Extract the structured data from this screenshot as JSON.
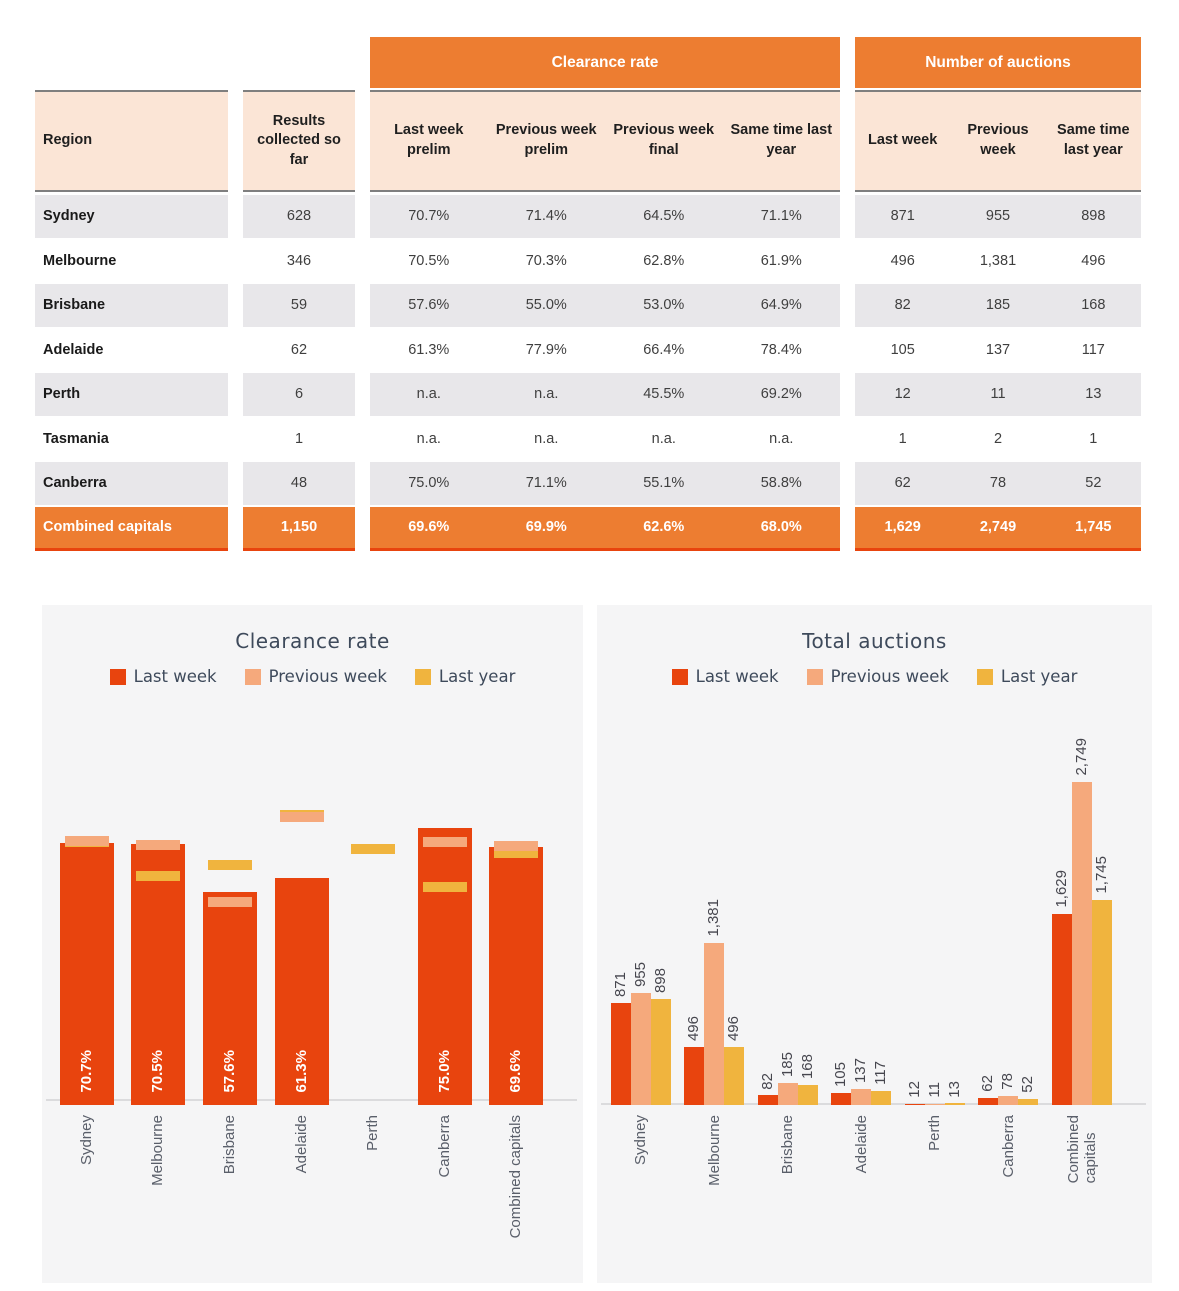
{
  "colors": {
    "accent_orange": "#ED7D31",
    "bar_red": "#E8440E",
    "salmon": "#F5A97C",
    "gold": "#F0B43E",
    "header_peach": "#FBE5D6",
    "row_gray": "#E8E7EA",
    "panel_gray": "#F5F5F6",
    "title_slate": "#3E4A5B"
  },
  "table": {
    "group_headers": [
      "Clearance rate",
      "Number of auctions"
    ],
    "columns": [
      "Region",
      "Results collected so far",
      "Last week prelim",
      "Previous week prelim",
      "Previous week final",
      "Same time last year",
      "Last week",
      "Previous week",
      "Same time last year"
    ],
    "rows": [
      {
        "region": "Sydney",
        "results": "628",
        "clearance": [
          "70.7%",
          "71.4%",
          "64.5%",
          "71.1%"
        ],
        "auctions": [
          "871",
          "955",
          "898"
        ]
      },
      {
        "region": "Melbourne",
        "results": "346",
        "clearance": [
          "70.5%",
          "70.3%",
          "62.8%",
          "61.9%"
        ],
        "auctions": [
          "496",
          "1,381",
          "496"
        ]
      },
      {
        "region": "Brisbane",
        "results": "59",
        "clearance": [
          "57.6%",
          "55.0%",
          "53.0%",
          "64.9%"
        ],
        "auctions": [
          "82",
          "185",
          "168"
        ]
      },
      {
        "region": "Adelaide",
        "results": "62",
        "clearance": [
          "61.3%",
          "77.9%",
          "66.4%",
          "78.4%"
        ],
        "auctions": [
          "105",
          "137",
          "117"
        ]
      },
      {
        "region": "Perth",
        "results": "6",
        "clearance": [
          "n.a.",
          "n.a.",
          "45.5%",
          "69.2%"
        ],
        "auctions": [
          "12",
          "11",
          "13"
        ]
      },
      {
        "region": "Tasmania",
        "results": "1",
        "clearance": [
          "n.a.",
          "n.a.",
          "n.a.",
          "n.a."
        ],
        "auctions": [
          "1",
          "2",
          "1"
        ]
      },
      {
        "region": "Canberra",
        "results": "48",
        "clearance": [
          "75.0%",
          "71.1%",
          "55.1%",
          "58.8%"
        ],
        "auctions": [
          "62",
          "78",
          "52"
        ]
      },
      {
        "region": "Combined capitals",
        "results": "1,150",
        "clearance": [
          "69.6%",
          "69.9%",
          "62.6%",
          "68.0%"
        ],
        "auctions": [
          "1,629",
          "2,749",
          "1,745"
        ],
        "highlight": true
      }
    ]
  },
  "chart_data": [
    {
      "type": "bar",
      "title": "Clearance rate",
      "categories": [
        "Sydney",
        "Melbourne",
        "Brisbane",
        "Adelaide",
        "Perth",
        "Canberra",
        "Combined capitals"
      ],
      "series": [
        {
          "name": "Last week",
          "style": "bar",
          "color": "#E8440E",
          "values": [
            70.7,
            70.5,
            57.6,
            61.3,
            null,
            75.0,
            69.6
          ],
          "labels": [
            "70.7%",
            "70.5%",
            "57.6%",
            "61.3%",
            null,
            "75.0%",
            "69.6%"
          ]
        },
        {
          "name": "Previous week",
          "style": "dash",
          "color": "#F5A97C",
          "values": [
            71.4,
            70.3,
            55.0,
            77.9,
            null,
            71.1,
            69.9
          ]
        },
        {
          "name": "Last year",
          "style": "dash",
          "color": "#F0B43E",
          "values": [
            71.1,
            61.9,
            64.9,
            78.4,
            69.2,
            58.8,
            68.0
          ]
        }
      ],
      "xlabel": "",
      "ylabel": "",
      "ylim": [
        0,
        85
      ],
      "grid": false,
      "legend_position": "top"
    },
    {
      "type": "bar",
      "title": "Total auctions",
      "categories": [
        "Sydney",
        "Melbourne",
        "Brisbane",
        "Adelaide",
        "Perth",
        "Canberra",
        "Combined\ncapitals"
      ],
      "series": [
        {
          "name": "Last week",
          "style": "bar",
          "color": "#E8440E",
          "values": [
            871,
            496,
            82,
            105,
            12,
            62,
            1629
          ],
          "labels": [
            "871",
            "496",
            "82",
            "105",
            "12",
            "62",
            "1,629"
          ]
        },
        {
          "name": "Previous week",
          "style": "bar",
          "color": "#F5A97C",
          "values": [
            955,
            1381,
            185,
            137,
            11,
            78,
            2749
          ],
          "labels": [
            "955",
            "1,381",
            "185",
            "137",
            "11",
            "78",
            "2,749"
          ]
        },
        {
          "name": "Last year",
          "style": "bar",
          "color": "#F0B43E",
          "values": [
            898,
            496,
            168,
            117,
            13,
            52,
            1745
          ],
          "labels": [
            "898",
            "496",
            "168",
            "117",
            "13",
            "52",
            "1,745"
          ]
        }
      ],
      "xlabel": "",
      "ylabel": "",
      "ylim": [
        0,
        2900
      ],
      "grid": false,
      "legend_position": "top"
    }
  ]
}
